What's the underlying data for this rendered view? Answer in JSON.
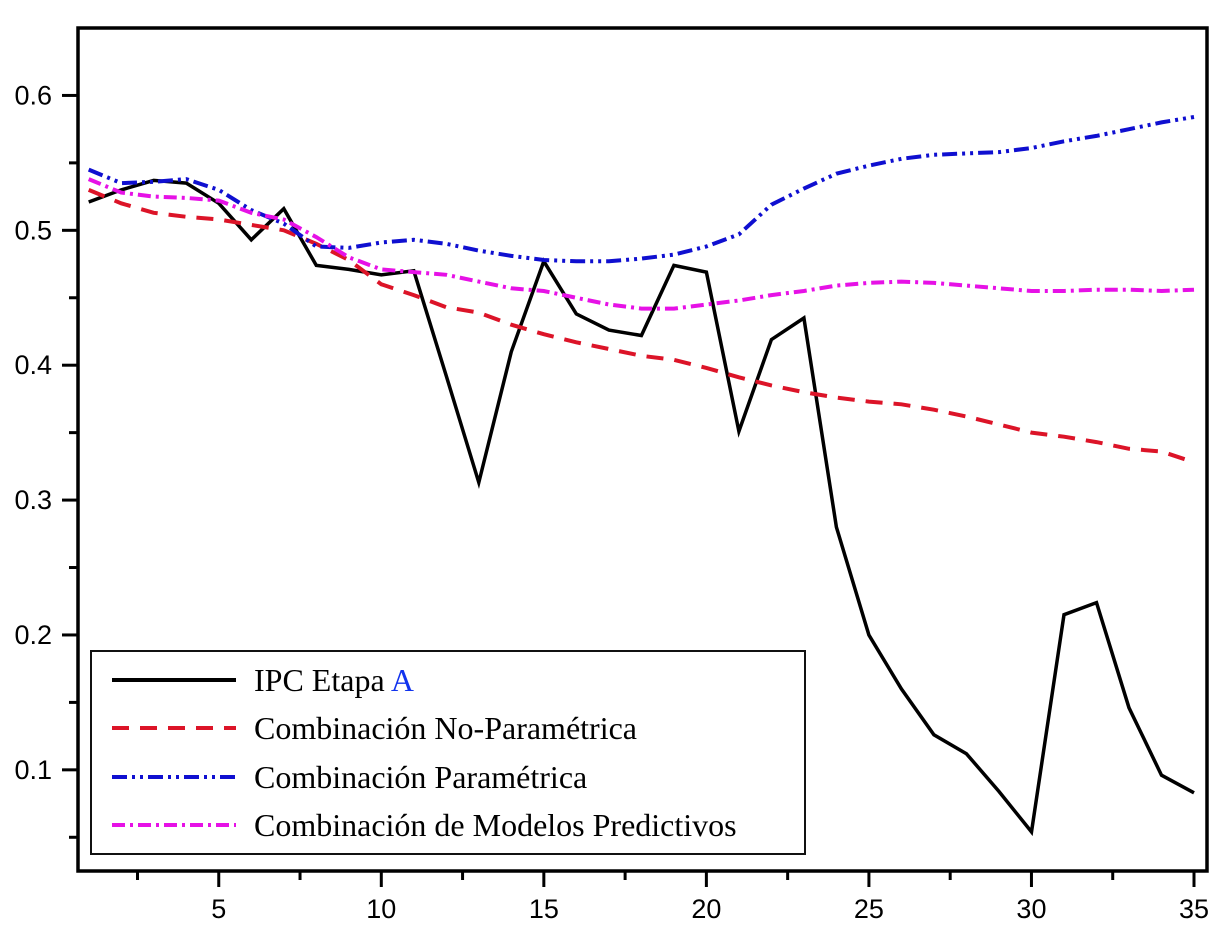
{
  "figure": {
    "background": "#ffffff",
    "axis_color": "#000000"
  },
  "chart_data": {
    "type": "line",
    "title": "",
    "xlabel": "",
    "ylabel": "",
    "grid": false,
    "legend_position": "bottom-left",
    "xlim": [
      0.67,
      35.4
    ],
    "ylim": [
      0.025,
      0.65
    ],
    "x_major_ticks": [
      5,
      10,
      15,
      20,
      25,
      30,
      35
    ],
    "x_minor_ticks": [
      2.5,
      7.5,
      12.5,
      17.5,
      22.5,
      27.5,
      32.5
    ],
    "y_major_ticks": [
      0.1,
      0.2,
      0.3,
      0.4,
      0.5,
      0.6
    ],
    "y_minor_ticks": [
      0.05,
      0.15,
      0.25,
      0.35,
      0.45,
      0.55
    ],
    "x": [
      1,
      2,
      3,
      4,
      5,
      6,
      7,
      8,
      9,
      10,
      11,
      12,
      13,
      14,
      15,
      16,
      17,
      18,
      19,
      20,
      21,
      22,
      23,
      24,
      25,
      26,
      27,
      28,
      29,
      30,
      31,
      32,
      33,
      34,
      35
    ],
    "series": [
      {
        "name": "IPC Etapa A",
        "name_parts": [
          {
            "text": "IPC Etapa ",
            "color": "#000000"
          },
          {
            "text": "A",
            "color": "#1133EE"
          }
        ],
        "color": "#000000",
        "style": "solid",
        "values": [
          0.521,
          0.53,
          0.537,
          0.535,
          0.52,
          0.493,
          0.516,
          0.474,
          0.471,
          0.467,
          0.47,
          0.392,
          0.313,
          0.41,
          0.477,
          0.438,
          0.426,
          0.422,
          0.474,
          0.469,
          0.351,
          0.419,
          0.435,
          0.28,
          0.2,
          0.16,
          0.126,
          0.112,
          0.084,
          0.054,
          0.215,
          0.224,
          0.146,
          0.096,
          0.083
        ]
      },
      {
        "name": "Combinación No-Paramétrica",
        "color": "#DC1428",
        "style": "dashed",
        "values": [
          0.53,
          0.52,
          0.513,
          0.51,
          0.508,
          0.504,
          0.5,
          0.49,
          0.478,
          0.46,
          0.452,
          0.443,
          0.439,
          0.43,
          0.423,
          0.417,
          0.412,
          0.407,
          0.404,
          0.398,
          0.391,
          0.385,
          0.38,
          0.376,
          0.373,
          0.371,
          0.367,
          0.362,
          0.356,
          0.35,
          0.347,
          0.343,
          0.338,
          0.336,
          0.328
        ]
      },
      {
        "name": "Combinación Paramétrica",
        "color": "#0F0FD0",
        "style": "dash-dot-dot",
        "values": [
          0.545,
          0.535,
          0.536,
          0.538,
          0.53,
          0.515,
          0.505,
          0.488,
          0.487,
          0.491,
          0.493,
          0.49,
          0.485,
          0.481,
          0.478,
          0.477,
          0.477,
          0.479,
          0.482,
          0.488,
          0.497,
          0.519,
          0.531,
          0.542,
          0.548,
          0.553,
          0.556,
          0.557,
          0.558,
          0.561,
          0.566,
          0.57,
          0.575,
          0.58,
          0.584
        ]
      },
      {
        "name": "Combinación de Modelos Predictivos",
        "color": "#E611E6",
        "style": "dash-dot",
        "values": [
          0.538,
          0.528,
          0.525,
          0.524,
          0.522,
          0.513,
          0.508,
          0.495,
          0.48,
          0.471,
          0.469,
          0.467,
          0.462,
          0.457,
          0.455,
          0.45,
          0.445,
          0.442,
          0.442,
          0.445,
          0.448,
          0.452,
          0.455,
          0.459,
          0.461,
          0.462,
          0.461,
          0.459,
          0.457,
          0.455,
          0.455,
          0.456,
          0.456,
          0.455,
          0.456
        ]
      }
    ]
  }
}
